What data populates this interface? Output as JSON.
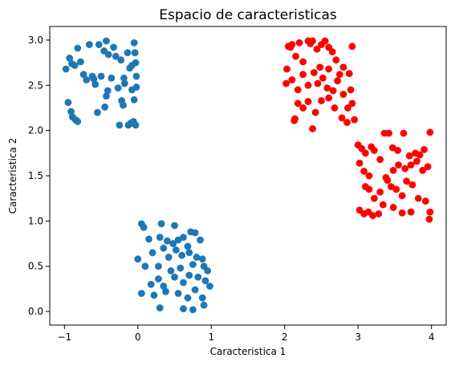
{
  "chart_data": {
    "type": "scatter",
    "title": "Espacio de caracteristicas",
    "xlabel": "Caracteristica 1",
    "ylabel": "Caracteristica 2",
    "xlim": [
      -1.2,
      4.2
    ],
    "ylim": [
      -0.15,
      3.15
    ],
    "xticks": [
      -1,
      0,
      1,
      2,
      3,
      4
    ],
    "yticks": [
      0.0,
      0.5,
      1.0,
      1.5,
      2.0,
      2.5,
      3.0
    ],
    "xtick_labels": [
      "−1",
      "0",
      "1",
      "2",
      "3",
      "4"
    ],
    "ytick_labels": [
      "0.0",
      "0.5",
      "1.0",
      "1.5",
      "2.0",
      "2.5",
      "3.0"
    ],
    "grid": false,
    "colors": {
      "blue": "#1f77b4",
      "red": "#ff0000"
    },
    "series": [
      {
        "color": "#1f77b4",
        "points": [
          [
            -0.98,
            2.68
          ],
          [
            -0.93,
            2.8
          ],
          [
            -0.9,
            2.74
          ],
          [
            -0.86,
            2.72
          ],
          [
            -0.82,
            2.91
          ],
          [
            -0.78,
            2.76
          ],
          [
            -0.74,
            2.62
          ],
          [
            -0.7,
            2.56
          ],
          [
            -0.66,
            2.95
          ],
          [
            -0.62,
            2.6
          ],
          [
            -0.58,
            2.51
          ],
          [
            -0.53,
            2.95
          ],
          [
            -0.5,
            2.6
          ],
          [
            -0.46,
            2.88
          ],
          [
            -0.43,
            2.99
          ],
          [
            -0.4,
            2.84
          ],
          [
            -0.36,
            2.58
          ],
          [
            -0.33,
            2.92
          ],
          [
            -0.3,
            2.82
          ],
          [
            -0.27,
            2.47
          ],
          [
            -0.23,
            2.78
          ],
          [
            -0.19,
            2.58
          ],
          [
            -0.14,
            2.86
          ],
          [
            -0.11,
            2.69
          ],
          [
            -0.08,
            2.45
          ],
          [
            -0.05,
            2.97
          ],
          [
            -0.03,
            2.75
          ],
          [
            -0.02,
            2.6
          ],
          [
            -0.02,
            2.48
          ],
          [
            -0.04,
            2.86
          ],
          [
            -0.95,
            2.31
          ],
          [
            -0.91,
            2.21
          ],
          [
            -0.89,
            2.15
          ],
          [
            -0.85,
            2.12
          ],
          [
            -0.82,
            2.1
          ],
          [
            -0.55,
            2.2
          ],
          [
            -0.45,
            2.26
          ],
          [
            -0.43,
            2.38
          ],
          [
            -0.41,
            2.44
          ],
          [
            -0.25,
            2.06
          ],
          [
            -0.22,
            2.33
          ],
          [
            -0.2,
            2.28
          ],
          [
            -0.13,
            2.06
          ],
          [
            -0.1,
            2.08
          ],
          [
            -0.06,
            2.1
          ],
          [
            -0.03,
            2.06
          ],
          [
            -0.05,
            2.34
          ],
          [
            -0.08,
            2.72
          ],
          [
            -0.18,
            2.52
          ],
          [
            -0.6,
            2.57
          ],
          [
            0.05,
            0.97
          ],
          [
            0.08,
            0.93
          ],
          [
            0.32,
            0.97
          ],
          [
            0.5,
            0.95
          ],
          [
            0.15,
            0.8
          ],
          [
            0.3,
            0.82
          ],
          [
            0.4,
            0.78
          ],
          [
            0.48,
            0.75
          ],
          [
            0.55,
            0.79
          ],
          [
            0.62,
            0.82
          ],
          [
            0.68,
            0.72
          ],
          [
            0.72,
            0.88
          ],
          [
            0.78,
            0.87
          ],
          [
            0.85,
            0.79
          ],
          [
            0.2,
            0.65
          ],
          [
            0.35,
            0.7
          ],
          [
            0.42,
            0.6
          ],
          [
            0.52,
            0.68
          ],
          [
            0.6,
            0.62
          ],
          [
            0.7,
            0.65
          ],
          [
            0.8,
            0.6
          ],
          [
            0.88,
            0.58
          ],
          [
            0.0,
            0.58
          ],
          [
            0.1,
            0.5
          ],
          [
            0.28,
            0.5
          ],
          [
            0.45,
            0.45
          ],
          [
            0.58,
            0.48
          ],
          [
            0.75,
            0.52
          ],
          [
            0.9,
            0.5
          ],
          [
            0.95,
            0.45
          ],
          [
            0.18,
            0.3
          ],
          [
            0.28,
            0.36
          ],
          [
            0.35,
            0.28
          ],
          [
            0.5,
            0.38
          ],
          [
            0.62,
            0.32
          ],
          [
            0.7,
            0.4
          ],
          [
            0.82,
            0.38
          ],
          [
            0.92,
            0.34
          ],
          [
            0.98,
            0.28
          ],
          [
            0.05,
            0.2
          ],
          [
            0.22,
            0.18
          ],
          [
            0.38,
            0.22
          ],
          [
            0.55,
            0.2
          ],
          [
            0.68,
            0.15
          ],
          [
            0.78,
            0.24
          ],
          [
            0.88,
            0.15
          ],
          [
            0.3,
            0.04
          ],
          [
            0.62,
            0.03
          ],
          [
            0.75,
            0.02
          ],
          [
            0.9,
            0.07
          ]
        ]
      },
      {
        "color": "#ff0000",
        "points": [
          [
            2.03,
            2.68
          ],
          [
            2.05,
            2.93
          ],
          [
            2.1,
            2.95
          ],
          [
            2.15,
            2.82
          ],
          [
            2.2,
            2.97
          ],
          [
            2.25,
            2.76
          ],
          [
            2.32,
            2.99
          ],
          [
            2.38,
            2.99
          ],
          [
            2.44,
            2.9
          ],
          [
            2.5,
            2.95
          ],
          [
            2.55,
            2.99
          ],
          [
            2.6,
            2.92
          ],
          [
            2.65,
            2.87
          ],
          [
            2.7,
            2.78
          ],
          [
            2.75,
            2.62
          ],
          [
            2.8,
            2.7
          ],
          [
            2.88,
            2.63
          ],
          [
            2.92,
            2.93
          ],
          [
            2.02,
            2.52
          ],
          [
            2.1,
            2.56
          ],
          [
            2.18,
            2.45
          ],
          [
            2.25,
            2.62
          ],
          [
            2.32,
            2.5
          ],
          [
            2.4,
            2.64
          ],
          [
            2.45,
            2.52
          ],
          [
            2.52,
            2.58
          ],
          [
            2.58,
            2.47
          ],
          [
            2.66,
            2.44
          ],
          [
            2.72,
            2.55
          ],
          [
            2.8,
            2.4
          ],
          [
            2.9,
            2.45
          ],
          [
            2.13,
            2.11
          ],
          [
            2.18,
            2.3
          ],
          [
            2.25,
            2.25
          ],
          [
            2.32,
            2.32
          ],
          [
            2.42,
            2.2
          ],
          [
            2.5,
            2.33
          ],
          [
            2.6,
            2.36
          ],
          [
            2.68,
            2.25
          ],
          [
            2.78,
            2.14
          ],
          [
            2.86,
            2.25
          ],
          [
            2.92,
            2.3
          ],
          [
            2.95,
            2.12
          ],
          [
            2.85,
            2.09
          ],
          [
            2.38,
            2.02
          ],
          [
            2.08,
            2.92
          ],
          [
            2.35,
            2.96
          ],
          [
            2.48,
            2.7
          ],
          [
            2.6,
            2.68
          ],
          [
            2.14,
            2.13
          ],
          [
            3.0,
            1.84
          ],
          [
            3.05,
            1.8
          ],
          [
            3.1,
            1.75
          ],
          [
            3.18,
            1.82
          ],
          [
            3.22,
            1.78
          ],
          [
            3.36,
            1.97
          ],
          [
            3.42,
            1.97
          ],
          [
            3.47,
            1.81
          ],
          [
            3.54,
            1.78
          ],
          [
            3.62,
            1.97
          ],
          [
            3.7,
            1.72
          ],
          [
            3.78,
            1.75
          ],
          [
            3.84,
            1.73
          ],
          [
            3.9,
            1.79
          ],
          [
            3.98,
            1.98
          ],
          [
            3.02,
            1.64
          ],
          [
            3.08,
            1.55
          ],
          [
            3.15,
            1.5
          ],
          [
            3.3,
            1.68
          ],
          [
            3.38,
            1.48
          ],
          [
            3.48,
            1.56
          ],
          [
            3.55,
            1.62
          ],
          [
            3.64,
            1.58
          ],
          [
            3.72,
            1.62
          ],
          [
            3.8,
            1.66
          ],
          [
            3.88,
            1.56
          ],
          [
            3.95,
            1.6
          ],
          [
            3.1,
            1.38
          ],
          [
            3.15,
            1.35
          ],
          [
            3.22,
            1.25
          ],
          [
            3.3,
            1.32
          ],
          [
            3.4,
            1.45
          ],
          [
            3.45,
            1.38
          ],
          [
            3.52,
            1.35
          ],
          [
            3.6,
            1.28
          ],
          [
            3.66,
            1.44
          ],
          [
            3.74,
            1.4
          ],
          [
            3.82,
            1.25
          ],
          [
            3.92,
            1.22
          ],
          [
            3.02,
            1.12
          ],
          [
            3.08,
            1.08
          ],
          [
            3.14,
            1.1
          ],
          [
            3.2,
            1.06
          ],
          [
            3.28,
            1.08
          ],
          [
            3.34,
            1.18
          ],
          [
            3.48,
            1.15
          ],
          [
            3.6,
            1.09
          ],
          [
            3.72,
            1.1
          ],
          [
            3.97,
            1.02
          ],
          [
            3.98,
            1.1
          ]
        ]
      }
    ]
  }
}
